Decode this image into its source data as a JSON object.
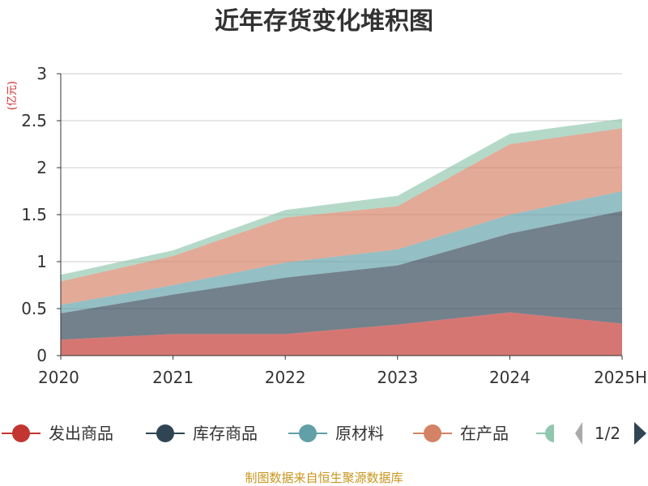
{
  "chart_data": {
    "type": "area",
    "stacked": true,
    "title": "近年存货变化堆积图",
    "ylabel": "(亿元)",
    "categories": [
      "2020",
      "2021",
      "2022",
      "2023",
      "2024",
      "2025H"
    ],
    "yticks": [
      "0",
      "0.5",
      "1",
      "1.5",
      "2",
      "2.5",
      "3"
    ],
    "ylim": [
      0,
      3
    ],
    "series": [
      {
        "name": "发出商品",
        "color": "#c23531",
        "values": [
          0.17,
          0.23,
          0.23,
          0.33,
          0.46,
          0.34
        ]
      },
      {
        "name": "库存商品",
        "color": "#2f4554",
        "values": [
          0.28,
          0.42,
          0.6,
          0.63,
          0.84,
          1.2
        ]
      },
      {
        "name": "原材料",
        "color": "#61a0a8",
        "values": [
          0.09,
          0.1,
          0.16,
          0.17,
          0.2,
          0.21
        ]
      },
      {
        "name": "在产品",
        "color": "#d48265",
        "values": [
          0.25,
          0.31,
          0.48,
          0.46,
          0.75,
          0.67
        ]
      },
      {
        "name": "",
        "color": "#91c7ae",
        "values": [
          0.07,
          0.06,
          0.08,
          0.11,
          0.11,
          0.1
        ]
      }
    ],
    "grid": true,
    "legend_position": "bottom"
  },
  "legend": {
    "items": [
      "发出商品",
      "库存商品",
      "原材料",
      "在产品"
    ],
    "page": "1/2"
  },
  "source": "制图数据来自恒生聚源数据库"
}
